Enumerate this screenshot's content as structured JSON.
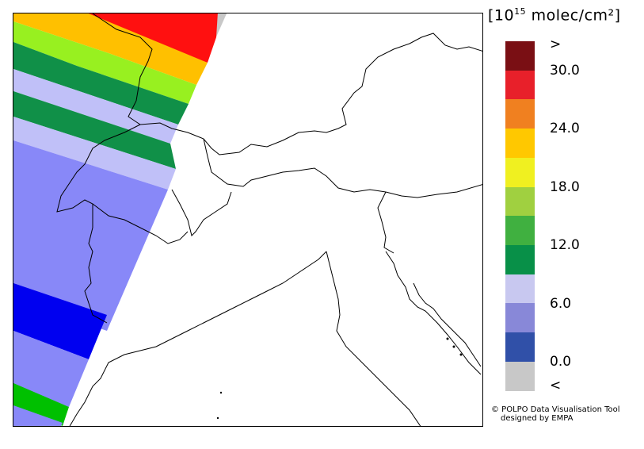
{
  "legend": {
    "unit_prefix": "[10",
    "unit_exp": "15",
    "unit_suffix": " molec/cm²]",
    "labels": [
      ">",
      "30.0",
      "24.0",
      "18.0",
      "12.0",
      "6.0",
      "0.0",
      "<"
    ],
    "colors": [
      "#7a0f14",
      "#e8202a",
      "#f08020",
      "#ffc800",
      "#f0f020",
      "#a0d040",
      "#40b040",
      "#089048",
      "#c8c8f0",
      "#8888d8",
      "#3050a8",
      "#c8c8c8"
    ]
  },
  "credits": {
    "line1": "© POLPO Data Visualisation Tool",
    "line2": "designed by EMPA"
  }
}
